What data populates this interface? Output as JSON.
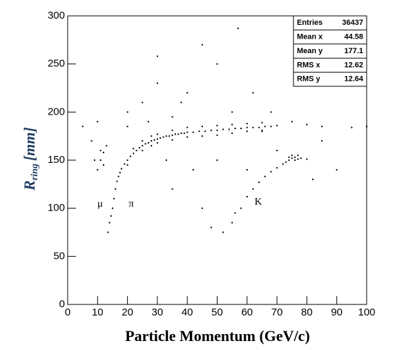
{
  "chart_data": {
    "type": "scatter",
    "x_label": "Particle Momentum (GeV/c)",
    "y_label": {
      "symbol": "R",
      "subscript": "ring",
      "unit": "[mm]"
    },
    "annotations": [
      "μ",
      "π",
      "K"
    ],
    "stats": [
      {
        "label": "Entries",
        "value": 36437
      },
      {
        "label": "Mean x",
        "value": 44.58
      },
      {
        "label": "Mean y",
        "value": 177.1
      },
      {
        "label": "RMS x",
        "value": 12.62
      },
      {
        "label": "RMS y",
        "value": 12.64
      }
    ],
    "color": "#000000",
    "xlim": [
      0,
      100
    ],
    "xticks": [
      0,
      10,
      20,
      30,
      40,
      50,
      60,
      70,
      80,
      90,
      100
    ],
    "ylim": [
      0,
      300
    ],
    "yticks": [
      0,
      50,
      100,
      150,
      200,
      250,
      300
    ],
    "x": [
      15,
      15.5,
      16,
      16.5,
      17,
      17.5,
      18,
      19,
      20,
      21,
      22,
      23,
      24,
      25,
      26,
      27,
      28,
      29,
      30,
      31,
      32,
      33,
      34,
      35,
      36,
      37,
      38,
      39,
      40,
      42,
      44,
      46,
      48,
      50,
      52,
      54,
      56,
      58,
      60,
      62,
      64,
      66,
      68,
      70,
      20,
      22,
      25,
      25,
      28,
      28,
      30,
      30,
      35,
      35,
      40,
      40,
      45,
      45,
      50,
      50,
      55,
      55,
      60,
      60,
      65,
      65,
      14,
      14.5,
      13.5,
      10,
      11,
      12,
      13,
      9,
      12,
      11,
      55,
      58,
      60,
      62,
      64,
      66,
      68,
      70,
      72,
      74,
      75,
      76,
      77,
      76,
      75,
      74,
      78,
      80,
      73,
      77,
      52,
      56,
      5,
      8,
      10,
      20,
      25,
      30,
      35,
      40,
      45,
      50,
      55,
      60,
      62,
      65,
      70,
      75,
      80,
      85,
      90,
      95,
      100,
      35,
      45,
      50,
      30,
      68,
      42,
      85,
      57,
      48,
      82,
      38,
      20,
      27,
      33
    ],
    "y": [
      100,
      110,
      120,
      128,
      133,
      137,
      141,
      146,
      150,
      154,
      157,
      160,
      163,
      165,
      167,
      168,
      170,
      171,
      172,
      173,
      174,
      175,
      175,
      176,
      177,
      177,
      178,
      178,
      179,
      179,
      180,
      180,
      181,
      181,
      182,
      182,
      183,
      183,
      184,
      184,
      184,
      185,
      185,
      186,
      145,
      162,
      160,
      170,
      165,
      175,
      168,
      177,
      171,
      181,
      174,
      184,
      175,
      185,
      176,
      186,
      178,
      187,
      180,
      188,
      181,
      189,
      85,
      92,
      75,
      140,
      150,
      158,
      165,
      150,
      145,
      160,
      85,
      100,
      112,
      120,
      127,
      133,
      138,
      142,
      146,
      150,
      152,
      153,
      151,
      150,
      155,
      153,
      152,
      151,
      148,
      155,
      75,
      95,
      185,
      170,
      190,
      200,
      210,
      230,
      195,
      220,
      270,
      150,
      200,
      140,
      220,
      180,
      160,
      190,
      187,
      185,
      140,
      184,
      185,
      120,
      100,
      250,
      258,
      200,
      140,
      170,
      287,
      80,
      130,
      210,
      185,
      190,
      150
    ]
  }
}
